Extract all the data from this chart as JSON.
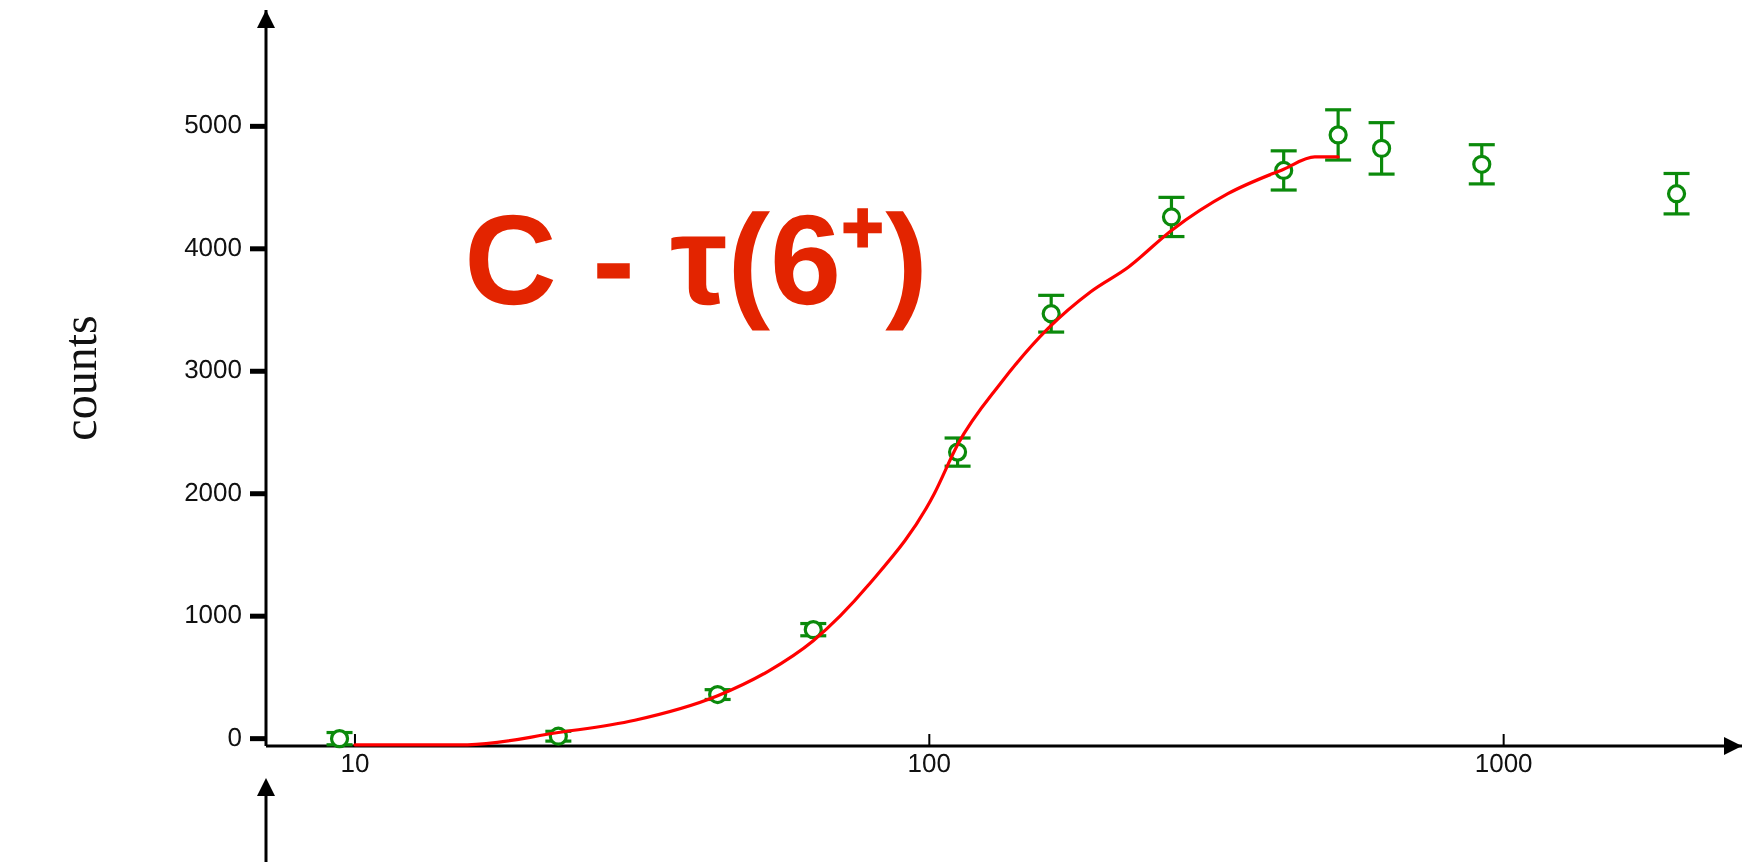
{
  "chart_data": {
    "type": "scatter",
    "title": "C - τ(6⁺)",
    "ylabel": "counts",
    "log": "x",
    "xlim": [
      7,
      2600
    ],
    "xticks": [
      10,
      100,
      1000
    ],
    "ylim": [
      -60,
      5950
    ],
    "yticks": [
      0,
      1000,
      2000,
      3000,
      4000,
      5000
    ],
    "series": [
      {
        "color": "#0b8a0b",
        "marker": "circle",
        "x": [
          9.4,
          22.6,
          42.8,
          62.8,
          112,
          163,
          264,
          414,
          515,
          613,
          916,
          2000
        ],
        "values": [
          0,
          20,
          360,
          890,
          2340,
          3470,
          4260,
          4640,
          4930,
          4820,
          4690,
          4450
        ],
        "errors": [
          50,
          40,
          40,
          50,
          115,
          150,
          160,
          160,
          205,
          210,
          160,
          165
        ]
      },
      {
        "type": "line",
        "color": "#ff0000",
        "x": [
          10,
          15.7,
          22.6,
          30.7,
          42.8,
          52.4,
          62.8,
          78.2,
          102,
          112,
          133,
          161,
          191,
          222,
          264,
          331,
          414,
          469,
          515
        ],
        "values": [
          -50,
          -50,
          50,
          150,
          350,
          550,
          800,
          1250,
          2000,
          2400,
          2900,
          3350,
          3650,
          3850,
          4150,
          4450,
          4650,
          4750,
          4750
        ]
      }
    ]
  }
}
